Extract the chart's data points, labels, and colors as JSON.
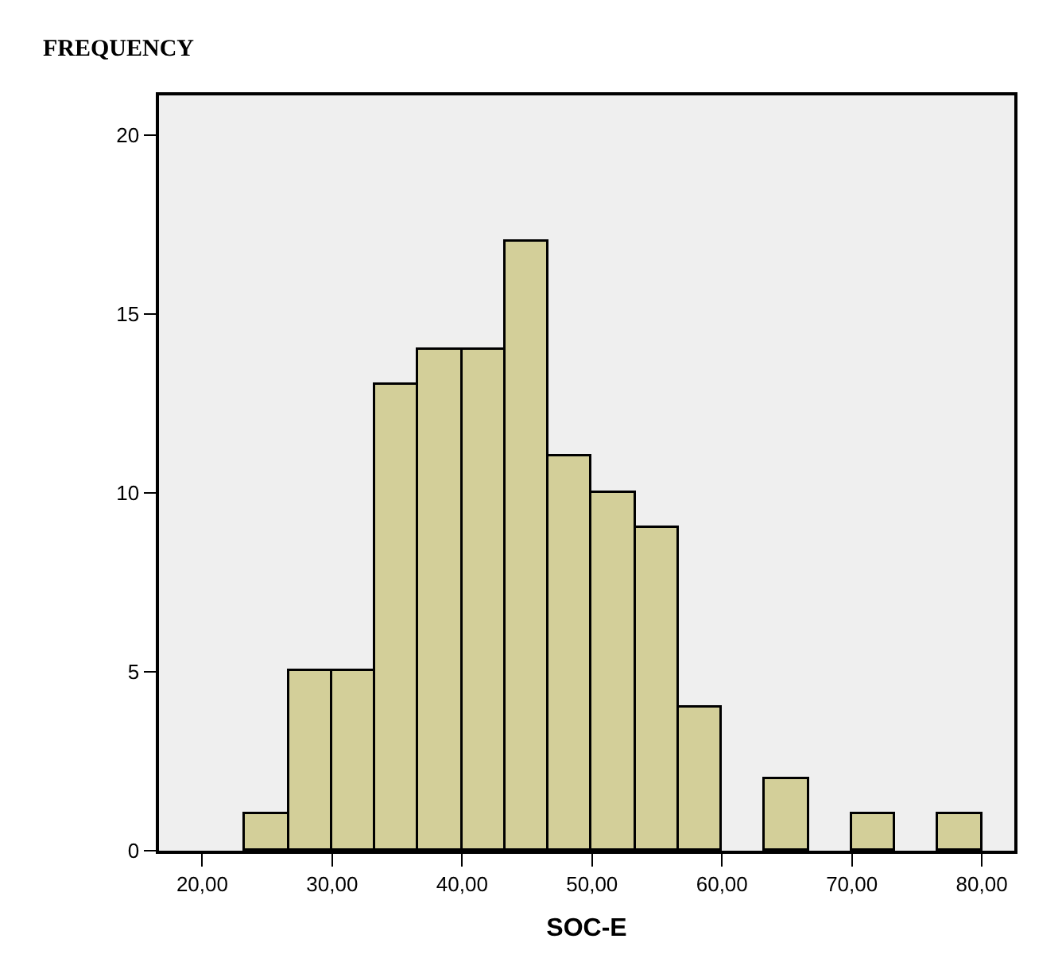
{
  "chart_data": {
    "type": "histogram",
    "ylabel": "FREQUENCY",
    "xlabel": "SOC-E",
    "bins": [
      23.33,
      26.67,
      30.0,
      33.33,
      36.67,
      40.0,
      43.33,
      46.67,
      50.0,
      53.33,
      56.67,
      60.0,
      63.33,
      66.67,
      70.0,
      73.33,
      76.67,
      80.0
    ],
    "values": [
      1,
      5,
      5,
      13,
      14,
      14,
      17,
      11,
      10,
      9,
      4,
      0,
      2,
      0,
      1,
      0,
      1
    ],
    "color": "#d3cf99",
    "xlim": [
      16.67,
      82.5
    ],
    "xticks": [
      {
        "value": 20,
        "label": "20,00"
      },
      {
        "value": 30,
        "label": "30,00"
      },
      {
        "value": 40,
        "label": "40,00"
      },
      {
        "value": 50,
        "label": "50,00"
      },
      {
        "value": 60,
        "label": "60,00"
      },
      {
        "value": 70,
        "label": "70,00"
      },
      {
        "value": 80,
        "label": "80,00"
      }
    ],
    "ylim": [
      0,
      21.1
    ],
    "yticks": [
      0,
      5,
      10,
      15,
      20
    ],
    "grid": false
  }
}
